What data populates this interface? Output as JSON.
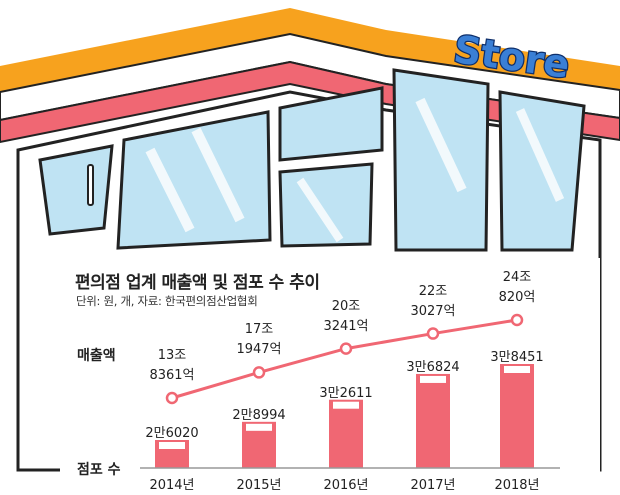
{
  "title": "편의점 업계 매출액 및 점포 수 추이",
  "source": "단위: 원, 개, 자료: 한국편의점산업협회",
  "sign_text": "Store",
  "colors": {
    "orange": "#f7a21e",
    "pink": "#f06773",
    "glass": "#bfe3f3",
    "accent": "#1d5fb0"
  },
  "chart_data": {
    "type": "bar+line",
    "categories": [
      "2014년",
      "2015년",
      "2016년",
      "2017년",
      "2018년"
    ],
    "series": [
      {
        "name": "매출액",
        "type": "line",
        "values": [
          13.8361,
          17.1947,
          20.3241,
          22.3027,
          24.082
        ],
        "labels": [
          [
            "13조",
            "8361억"
          ],
          [
            "17조",
            "1947억"
          ],
          [
            "20조",
            "3241억"
          ],
          [
            "22조",
            "3027억"
          ],
          [
            "24조",
            "820억"
          ]
        ]
      },
      {
        "name": "점포 수",
        "type": "bar",
        "values": [
          26020,
          28994,
          32611,
          36824,
          38451
        ],
        "labels": [
          "2만6020",
          "2만8994",
          "3만2611",
          "3만6824",
          "3만8451"
        ]
      }
    ]
  }
}
